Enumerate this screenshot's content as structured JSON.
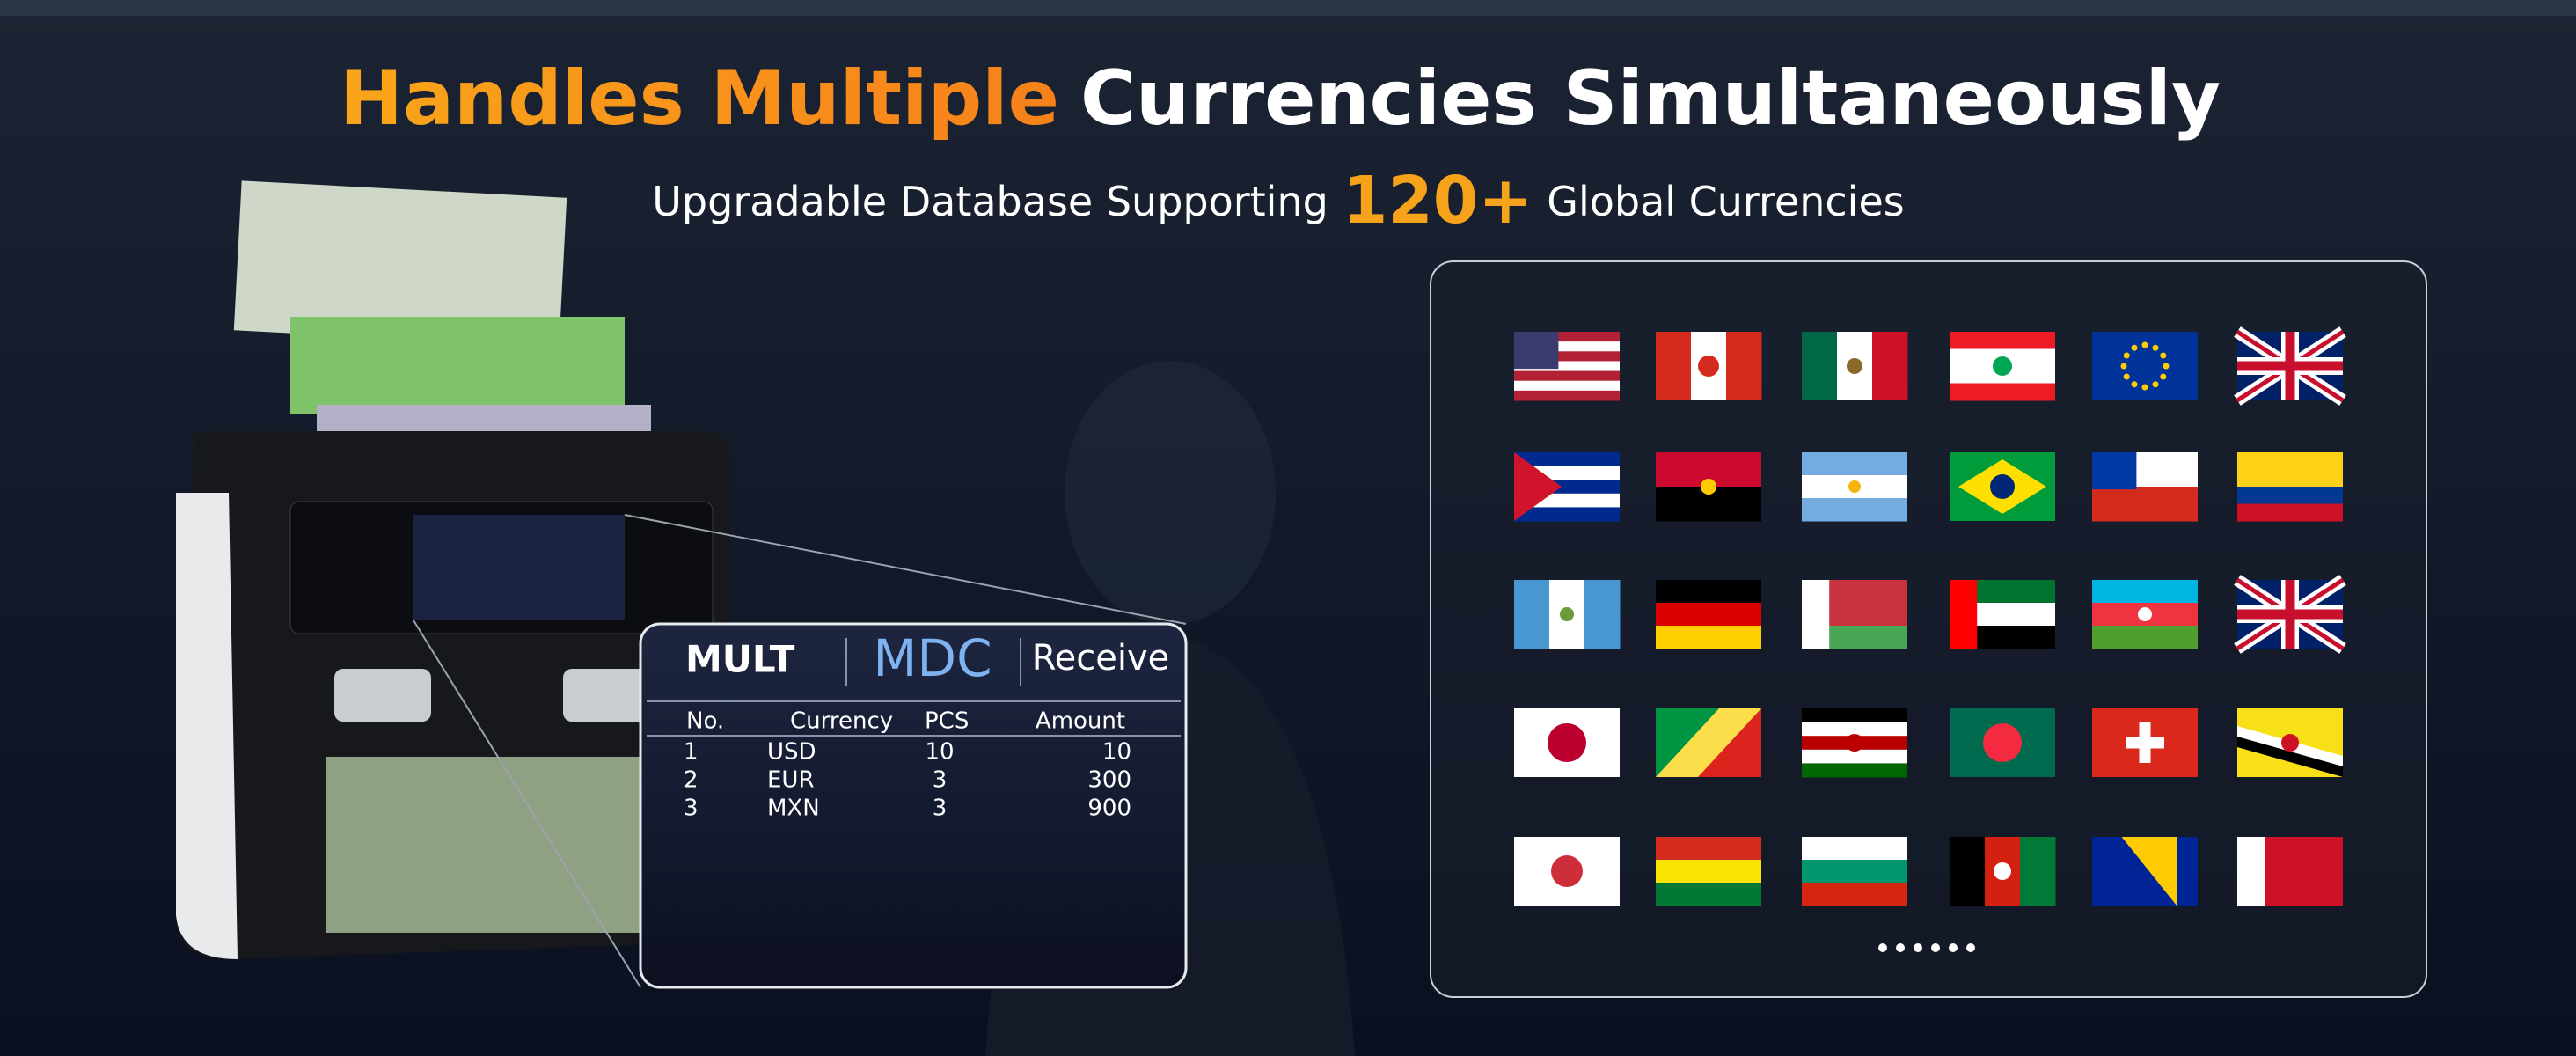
{
  "header": {
    "title_highlight": "Handles Multiple",
    "title": "Currencies Simultaneously",
    "subtitle_prefix": "Upgradable Database Supporting",
    "subtitle_number": "120+",
    "subtitle_suffix": "Global Currencies"
  },
  "screen": {
    "mode": "MULT",
    "function": "MDC",
    "status": "Receive",
    "columns": [
      "No.",
      "Currency",
      "PCS",
      "Amount"
    ],
    "rows": [
      [
        1,
        "USD",
        10,
        10
      ],
      [
        2,
        "EUR",
        3,
        300
      ],
      [
        3,
        "MXN",
        3,
        900
      ]
    ]
  }
}
